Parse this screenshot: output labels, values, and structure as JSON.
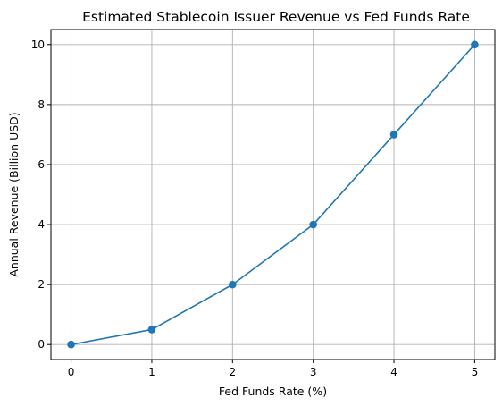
{
  "chart_data": {
    "type": "line",
    "title": "Estimated Stablecoin Issuer Revenue vs Fed Funds Rate",
    "xlabel": "Fed Funds Rate (%)",
    "ylabel": "Annual Revenue (Billion USD)",
    "x": [
      0,
      1,
      2,
      3,
      4,
      5
    ],
    "series": [
      {
        "values": [
          0,
          0.5,
          2,
          4,
          7,
          10
        ],
        "color": "#1f77b4",
        "marker": "circle"
      }
    ],
    "xlim": [
      -0.25,
      5.25
    ],
    "ylim": [
      -0.5,
      10.5
    ],
    "xticks": [
      0,
      1,
      2,
      3,
      4,
      5
    ],
    "yticks": [
      0,
      2,
      4,
      6,
      8,
      10
    ],
    "xtick_labels": [
      "0",
      "1",
      "2",
      "3",
      "4",
      "5"
    ],
    "ytick_labels": [
      "0",
      "2",
      "4",
      "6",
      "8",
      "10"
    ],
    "grid": true,
    "grid_color": "#b0b0b0"
  }
}
